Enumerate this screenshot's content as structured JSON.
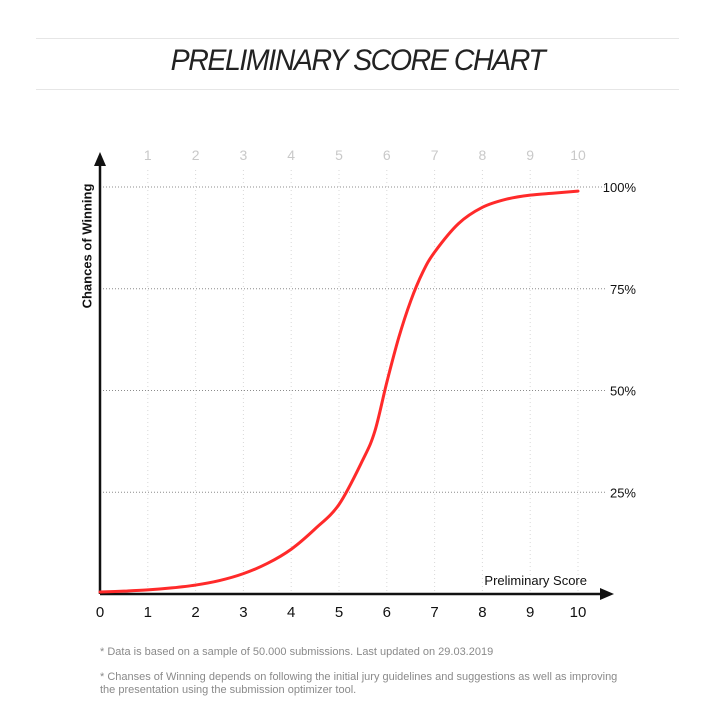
{
  "title": "PRELIMINARY SCORE CHART",
  "notes": [
    "* Data is based on a sample of 50.000 submissions. Last updated on 29.03.2019",
    "* Chanses of Winning depends on following the initial jury guidelines and suggestions as well as improving the presentation using the submission optimizer tool."
  ],
  "chart_data": {
    "type": "line",
    "title": "PRELIMINARY SCORE CHART",
    "xlabel": "Preliminary Score",
    "ylabel": "Chances of Winning",
    "xlim": [
      0,
      10
    ],
    "ylim": [
      0,
      100
    ],
    "x_ticks_bottom": [
      "0",
      "1",
      "2",
      "3",
      "4",
      "5",
      "6",
      "7",
      "8",
      "9",
      "10"
    ],
    "x_ticks_top": [
      "1",
      "2",
      "3",
      "4",
      "5",
      "6",
      "7",
      "8",
      "9",
      "10"
    ],
    "y_ticks": [
      "25%",
      "50%",
      "75%",
      "100%"
    ],
    "grid": true,
    "series": [
      {
        "color": "#ff2a2a",
        "x": [
          0,
          0.5,
          1,
          1.5,
          2,
          2.5,
          3,
          3.5,
          4,
          4.5,
          5,
          5.5,
          5.75,
          6,
          6.25,
          6.5,
          6.75,
          7,
          7.5,
          8,
          8.5,
          9,
          9.5,
          10
        ],
        "y": [
          0.5,
          0.7,
          1,
          1.5,
          2.2,
          3.3,
          5,
          7.5,
          11,
          16,
          22,
          33,
          40,
          52,
          63,
          72,
          79,
          84,
          91,
          95,
          97,
          98,
          98.5,
          99
        ]
      }
    ]
  }
}
